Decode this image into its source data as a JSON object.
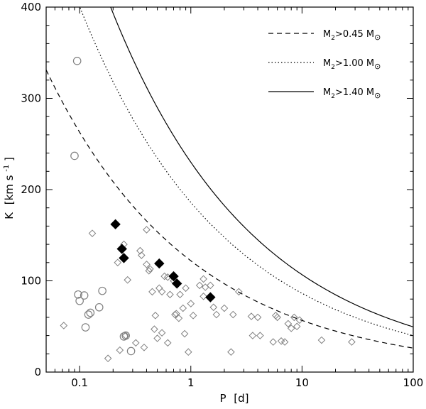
{
  "chart_data": {
    "type": "scatter",
    "title": "",
    "xlabel": "P",
    "xlabel_unit": "[d]",
    "ylabel": "K",
    "ylabel_unit": "[km s",
    "ylabel_unit_sup": "-1",
    "ylabel_unit_close": "]",
    "xscale": "log",
    "xlim": [
      0.05,
      100
    ],
    "ylim": [
      0,
      400
    ],
    "x_ticks": [
      {
        "value": 0.1,
        "label": "0.1"
      },
      {
        "value": 1,
        "label": "1"
      },
      {
        "value": 10,
        "label": "10"
      },
      {
        "value": 100,
        "label": "100"
      }
    ],
    "y_ticks": [
      {
        "value": 0,
        "label": "0"
      },
      {
        "value": 100,
        "label": "100"
      },
      {
        "value": 200,
        "label": "200"
      },
      {
        "value": 300,
        "label": "300"
      },
      {
        "value": 400,
        "label": "400"
      }
    ],
    "legend_position": "top-right",
    "curves": [
      {
        "name": "M2>0.45 Msun",
        "label_main": "M",
        "label_sub": "2",
        "label_rest": ">0.45 M",
        "label_sun": "⊙",
        "style": "dashed",
        "k_at_1d": 122
      },
      {
        "name": "M2>1.00 Msun",
        "label_main": "M",
        "label_sub": "2",
        "label_rest": ">1.00 M",
        "label_sun": "⊙",
        "style": "dotted",
        "k_at_1d": 186
      },
      {
        "name": "M2>1.40 Msun",
        "label_main": "M",
        "label_sub": "2",
        "label_rest": ">1.40 M",
        "label_sun": "⊙",
        "style": "solid",
        "k_at_1d": 230
      }
    ],
    "series": [
      {
        "name": "circles",
        "marker": "open-circle",
        "color": "#808080",
        "points": [
          [
            0.095,
            341
          ],
          [
            0.09,
            237
          ],
          [
            0.097,
            85
          ],
          [
            0.11,
            84
          ],
          [
            0.1,
            78
          ],
          [
            0.125,
            65
          ],
          [
            0.12,
            63
          ],
          [
            0.15,
            71
          ],
          [
            0.16,
            89
          ],
          [
            0.113,
            49
          ],
          [
            0.26,
            40
          ],
          [
            0.25,
            39
          ],
          [
            0.29,
            23
          ]
        ]
      },
      {
        "name": "open diamonds",
        "marker": "open-diamond",
        "color": "#808080",
        "points": [
          [
            0.072,
            51
          ],
          [
            0.13,
            152
          ],
          [
            0.18,
            15
          ],
          [
            0.23,
            24
          ],
          [
            0.22,
            120
          ],
          [
            0.25,
            140
          ],
          [
            0.27,
            101
          ],
          [
            0.26,
            40
          ],
          [
            0.32,
            32
          ],
          [
            0.35,
            133
          ],
          [
            0.36,
            128
          ],
          [
            0.38,
            27
          ],
          [
            0.4,
            156
          ],
          [
            0.4,
            118
          ],
          [
            0.42,
            111
          ],
          [
            0.43,
            113
          ],
          [
            0.45,
            88
          ],
          [
            0.48,
            62
          ],
          [
            0.47,
            47
          ],
          [
            0.5,
            37
          ],
          [
            0.52,
            92
          ],
          [
            0.55,
            88
          ],
          [
            0.55,
            43
          ],
          [
            0.58,
            105
          ],
          [
            0.62,
            104
          ],
          [
            0.62,
            32
          ],
          [
            0.65,
            85
          ],
          [
            0.7,
            100
          ],
          [
            0.72,
            63
          ],
          [
            0.74,
            64
          ],
          [
            0.78,
            59
          ],
          [
            0.8,
            85
          ],
          [
            0.85,
            70
          ],
          [
            0.88,
            42
          ],
          [
            0.9,
            92
          ],
          [
            0.95,
            22
          ],
          [
            1.0,
            75
          ],
          [
            1.05,
            62
          ],
          [
            1.2,
            95
          ],
          [
            1.3,
            102
          ],
          [
            1.3,
            83
          ],
          [
            1.35,
            93
          ],
          [
            1.5,
            95
          ],
          [
            1.6,
            71
          ],
          [
            1.7,
            63
          ],
          [
            2.0,
            70
          ],
          [
            2.3,
            22
          ],
          [
            2.4,
            63
          ],
          [
            2.7,
            88
          ],
          [
            3.5,
            61
          ],
          [
            3.6,
            40
          ],
          [
            4.0,
            60
          ],
          [
            4.2,
            40
          ],
          [
            5.5,
            33
          ],
          [
            5.8,
            62
          ],
          [
            6.0,
            60
          ],
          [
            6.5,
            34
          ],
          [
            7.0,
            33
          ],
          [
            7.5,
            53
          ],
          [
            8.0,
            48
          ],
          [
            8.5,
            60
          ],
          [
            9.0,
            50
          ],
          [
            9.5,
            57
          ],
          [
            15.0,
            35
          ],
          [
            28.0,
            33
          ]
        ]
      },
      {
        "name": "filled diamonds",
        "marker": "filled-diamond",
        "color": "#000000",
        "points": [
          [
            0.21,
            162
          ],
          [
            0.24,
            135
          ],
          [
            0.25,
            125
          ],
          [
            0.52,
            119
          ],
          [
            0.7,
            105
          ],
          [
            0.75,
            97
          ],
          [
            1.5,
            82
          ]
        ]
      }
    ]
  }
}
